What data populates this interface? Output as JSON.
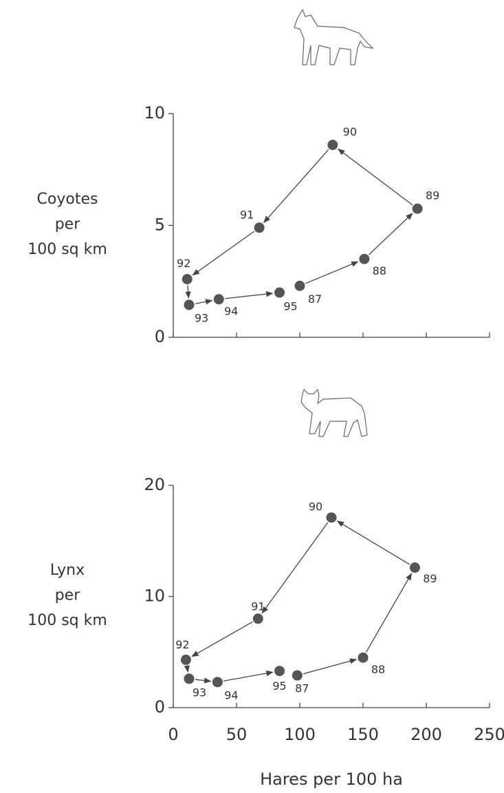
{
  "chart_data": [
    {
      "type": "scatter",
      "ylabel": [
        "Coyotes",
        "per",
        "100 sq km"
      ],
      "point_labels": [
        "87",
        "88",
        "89",
        "90",
        "91",
        "92",
        "93",
        "94",
        "95"
      ],
      "x": [
        100,
        151,
        193,
        126,
        68,
        11,
        12.5,
        36,
        84
      ],
      "values": [
        2.3,
        3.5,
        5.75,
        8.6,
        4.9,
        2.6,
        1.45,
        1.7,
        2.0
      ],
      "color": "#555555",
      "xlim": [
        0,
        250
      ],
      "xticks": [
        0,
        50,
        100,
        150,
        200,
        250
      ],
      "xtick_labels": false,
      "ylim": [
        0,
        10
      ],
      "yticks": [
        0,
        5,
        10
      ]
    },
    {
      "type": "scatter",
      "ylabel": [
        "Lynx",
        "per",
        "100 sq km"
      ],
      "xlabel": "Hares per 100 ha",
      "point_labels": [
        "87",
        "88",
        "89",
        "90",
        "91",
        "92",
        "93",
        "94",
        "95"
      ],
      "x": [
        98,
        150,
        191,
        125,
        67,
        10,
        12.5,
        35,
        84
      ],
      "values": [
        2.9,
        4.5,
        12.6,
        17.1,
        8.0,
        4.3,
        2.6,
        2.3,
        3.3
      ],
      "color": "#555555",
      "xlim": [
        0,
        250
      ],
      "xticks": [
        0,
        50,
        100,
        150,
        200,
        250
      ],
      "xtick_labels": true,
      "ylim": [
        0,
        20
      ],
      "yticks": [
        0,
        10,
        20
      ]
    }
  ]
}
